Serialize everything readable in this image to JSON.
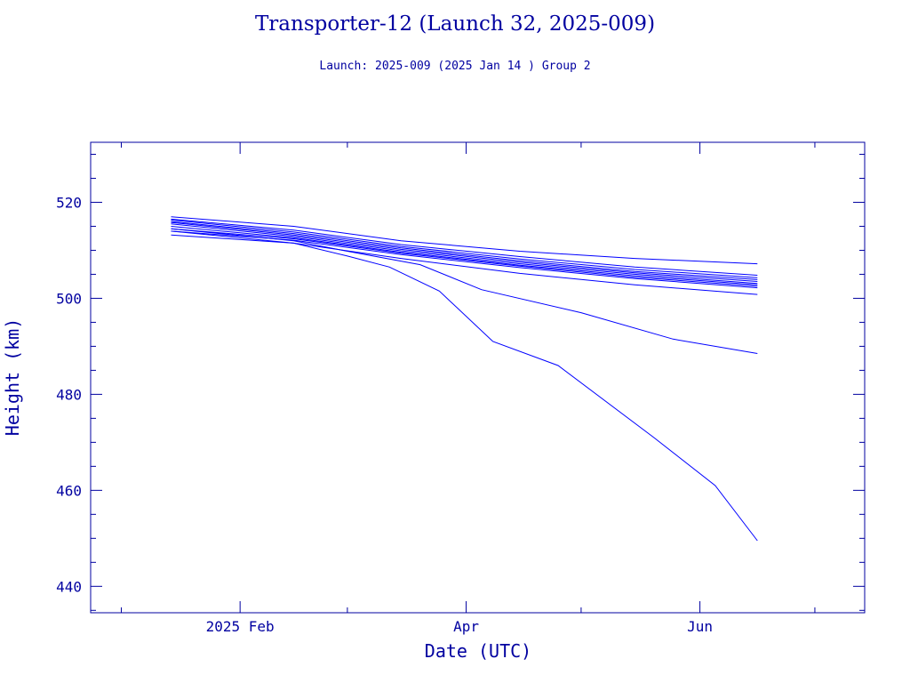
{
  "title": "Transporter-12 (Launch 32, 2025-009)",
  "subtitle": "Launch: 2025-009  (2025 Jan 14 )  Group 2",
  "chart_data": {
    "type": "line",
    "title": "Transporter-12 (Launch 32, 2025-009)",
    "subtitle": "Launch: 2025-009  (2025 Jan 14 )  Group 2",
    "xlabel": "Date (UTC)",
    "ylabel": "Height (km)",
    "x_ticks": [
      {
        "label": "2025 Feb",
        "date": "2025-02-01"
      },
      {
        "label": "Apr",
        "date": "2025-04-01"
      },
      {
        "label": "Jun",
        "date": "2025-06-01"
      }
    ],
    "xlim": [
      "2024-12-24",
      "2025-07-14"
    ],
    "y_ticks": [
      440,
      460,
      480,
      500,
      520
    ],
    "ylim": [
      434.5,
      532.5
    ],
    "grid": false,
    "series_color": "#0000ff",
    "frame_color": "#0000a0",
    "series": [
      {
        "x": [
          "2025-01-14",
          "2025-02-15",
          "2025-03-15",
          "2025-04-15",
          "2025-05-15",
          "2025-06-16"
        ],
        "y": [
          517.0,
          515.0,
          512.0,
          509.8,
          508.3,
          507.2
        ]
      },
      {
        "x": [
          "2025-01-14",
          "2025-02-15",
          "2025-03-15",
          "2025-04-15",
          "2025-05-15",
          "2025-06-16"
        ],
        "y": [
          516.5,
          514.2,
          511.2,
          508.7,
          506.5,
          504.8
        ]
      },
      {
        "x": [
          "2025-01-14",
          "2025-02-15",
          "2025-03-15",
          "2025-04-15",
          "2025-05-15",
          "2025-06-16"
        ],
        "y": [
          516.3,
          513.8,
          510.8,
          508.2,
          506.0,
          504.3
        ]
      },
      {
        "x": [
          "2025-01-14",
          "2025-02-15",
          "2025-03-15",
          "2025-04-15",
          "2025-05-15",
          "2025-06-16"
        ],
        "y": [
          516.0,
          513.5,
          510.5,
          507.8,
          505.6,
          503.9
        ]
      },
      {
        "x": [
          "2025-01-14",
          "2025-02-15",
          "2025-03-15",
          "2025-04-15",
          "2025-05-15",
          "2025-06-16"
        ],
        "y": [
          515.8,
          513.2,
          510.2,
          507.5,
          505.3,
          503.5
        ]
      },
      {
        "x": [
          "2025-01-14",
          "2025-02-15",
          "2025-03-15",
          "2025-04-15",
          "2025-05-15",
          "2025-06-16"
        ],
        "y": [
          515.5,
          512.9,
          509.9,
          507.2,
          505.0,
          503.1
        ]
      },
      {
        "x": [
          "2025-01-14",
          "2025-02-15",
          "2025-03-15",
          "2025-04-15",
          "2025-05-15",
          "2025-06-16"
        ],
        "y": [
          515.0,
          512.6,
          509.6,
          506.9,
          504.7,
          502.8
        ]
      },
      {
        "x": [
          "2025-01-14",
          "2025-02-15",
          "2025-03-15",
          "2025-04-15",
          "2025-05-15",
          "2025-06-16"
        ],
        "y": [
          514.5,
          512.4,
          509.4,
          506.7,
          504.4,
          502.5
        ]
      },
      {
        "x": [
          "2025-01-14",
          "2025-02-15",
          "2025-03-15",
          "2025-04-15",
          "2025-05-15",
          "2025-06-16"
        ],
        "y": [
          514.0,
          512.1,
          509.1,
          506.4,
          504.1,
          502.2
        ]
      },
      {
        "x": [
          "2025-01-14",
          "2025-02-15",
          "2025-03-15",
          "2025-04-15",
          "2025-05-15",
          "2025-06-16"
        ],
        "y": [
          513.2,
          511.5,
          508.3,
          505.2,
          502.8,
          500.8
        ]
      },
      {
        "x": [
          "2025-01-14",
          "2025-02-15",
          "2025-03-01",
          "2025-03-20",
          "2025-04-05",
          "2025-05-01",
          "2025-05-25",
          "2025-06-16"
        ],
        "y": [
          514.5,
          512.0,
          509.8,
          507.0,
          501.8,
          497.0,
          491.5,
          488.5
        ]
      },
      {
        "x": [
          "2025-01-14",
          "2025-02-15",
          "2025-03-01",
          "2025-03-12",
          "2025-03-25",
          "2025-04-08",
          "2025-04-25",
          "2025-05-20",
          "2025-06-05",
          "2025-06-16"
        ],
        "y": [
          514.0,
          511.5,
          508.8,
          506.5,
          501.5,
          491.0,
          486.0,
          471.0,
          461.0,
          449.5
        ]
      }
    ]
  }
}
